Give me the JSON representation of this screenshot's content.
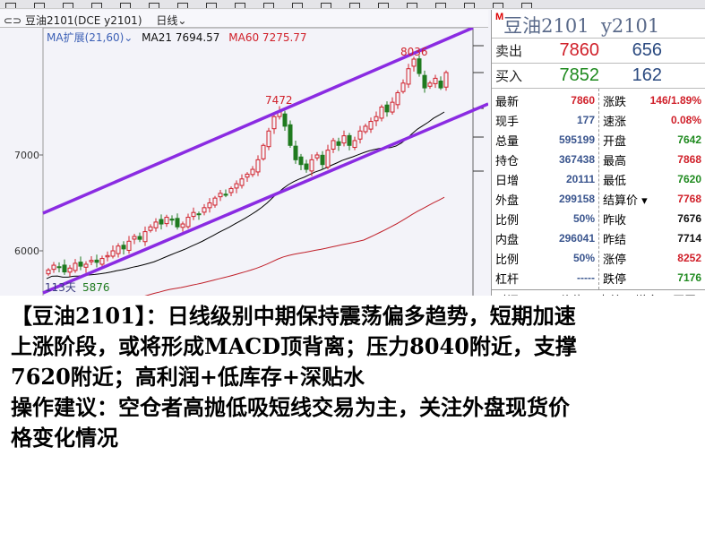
{
  "header": {
    "symbol": "豆油2101(DCE y2101)",
    "period": "日线"
  },
  "legend": {
    "indicator": "MA扩展(21,60)",
    "ma21": "MA21 7694.57",
    "ma60": "MA60 7275.77"
  },
  "chart_data": {
    "type": "candlestick",
    "y_ticks": [
      "7000",
      "6000"
    ],
    "ylim": [
      5700,
      8300
    ],
    "annotations": {
      "high1": "7472",
      "high2": "8036",
      "low": "5876",
      "days": "113天"
    },
    "closes": [
      5800,
      5850,
      5830,
      5780,
      5820,
      5870,
      5840,
      5860,
      5900,
      5880,
      5920,
      5950,
      6000,
      6050,
      6020,
      6100,
      6150,
      6120,
      6200,
      6250,
      6300,
      6280,
      6350,
      6320,
      6250,
      6280,
      6350,
      6400,
      6380,
      6450,
      6500,
      6550,
      6600,
      6580,
      6650,
      6700,
      6750,
      6800,
      6850,
      6950,
      7100,
      7250,
      7400,
      7450,
      7300,
      7100,
      6950,
      6900,
      6850,
      6950,
      7000,
      6900,
      7050,
      7150,
      7100,
      7200,
      7100,
      7150,
      7250,
      7300,
      7350,
      7400,
      7500,
      7450,
      7550,
      7650,
      7750,
      7900,
      8000,
      7850,
      7700,
      7750,
      7800,
      7700,
      7860
    ],
    "colors": {
      "up": "#d0202a",
      "down": "#1f7a1f",
      "ma21": "#000000",
      "ma60": "#c0202a",
      "channel": "#8a2be2"
    }
  },
  "quote": {
    "title": "豆油2101  y2101",
    "m_badge": "M",
    "ask": {
      "label": "卖出",
      "price": "7860",
      "qty": "656"
    },
    "bid": {
      "label": "买入",
      "price": "7852",
      "qty": "162"
    },
    "left": [
      {
        "label": "最新",
        "value": "7860",
        "color": "red"
      },
      {
        "label": "现手",
        "value": "177",
        "color": "blue"
      },
      {
        "label": "总量",
        "value": "595199",
        "color": "blue"
      },
      {
        "label": "持仓",
        "value": "367438",
        "color": "blue"
      },
      {
        "label": "日增",
        "value": "20111",
        "color": "blue"
      },
      {
        "label": "外盘",
        "value": "299158",
        "color": "blue"
      },
      {
        "label": "比例",
        "value": "50%",
        "color": "blue"
      },
      {
        "label": "内盘",
        "value": "296041",
        "color": "blue"
      },
      {
        "label": "比例",
        "value": "50%",
        "color": "blue"
      },
      {
        "label": "杠杆",
        "value": "-----",
        "color": "blue"
      }
    ],
    "right": [
      {
        "label": "涨跌",
        "value": "146/1.89%",
        "color": "red"
      },
      {
        "label": "速涨",
        "value": "0.08%",
        "color": "red"
      },
      {
        "label": "开盘",
        "value": "7642",
        "color": "green"
      },
      {
        "label": "最高",
        "value": "7868",
        "color": "red"
      },
      {
        "label": "最低",
        "value": "7620",
        "color": "green"
      },
      {
        "label": "结算价 ▾",
        "value": "7768",
        "color": "red"
      },
      {
        "label": "昨收",
        "value": "7676",
        "color": "black"
      },
      {
        "label": "昨结",
        "value": "7714",
        "color": "black"
      },
      {
        "label": "涨停",
        "value": "8252",
        "color": "red"
      },
      {
        "label": "跌停",
        "value": "7176",
        "color": "green"
      }
    ],
    "table_header": [
      "时间",
      "价位",
      "大单",
      "增仓",
      "开平"
    ]
  },
  "commentary": [
    "【豆油2101】：日线级别中期保持震荡偏多趋势，短期加速",
    "上涨阶段，或将形成MACD顶背离；压力8040附近，支撑",
    "7620附近；高利润+低库存+深贴水",
    "操作建议：空仓者高抛低吸短线交易为主，关注外盘现货价",
    "格变化情况"
  ]
}
